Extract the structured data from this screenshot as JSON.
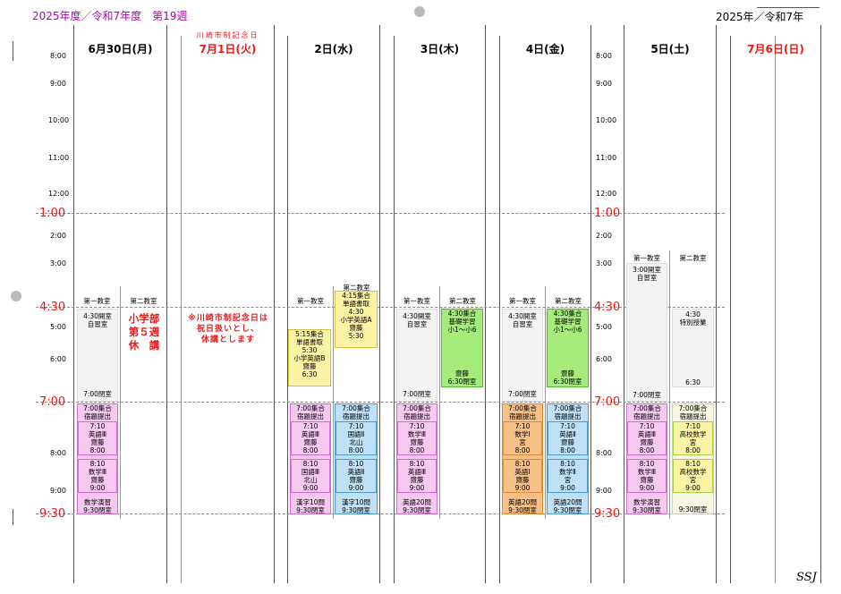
{
  "header": {
    "left": "2025年度／令和7年度　第19週",
    "right": "2025年／令和7年",
    "holiday_note": "川崎市制記念日",
    "signature": "SSJ"
  },
  "days": [
    {
      "label": "6月30日(月)",
      "red": false
    },
    {
      "label": "7月1日(火)",
      "red": true
    },
    {
      "label": "2日(水)",
      "red": false
    },
    {
      "label": "3日(木)",
      "red": false
    },
    {
      "label": "4日(金)",
      "red": false
    },
    {
      "label": "5日(土)",
      "red": false
    },
    {
      "label": "7月6日(日)",
      "red": true
    }
  ],
  "hours_small": [
    "8:00",
    "9:00",
    "10:00",
    "11:00",
    "12:00",
    "2:00",
    "3:00",
    "5:00",
    "6:00",
    "8:00",
    "9:00"
  ],
  "hours_big": [
    "1:00",
    "4:30",
    "7:00",
    "9:30"
  ],
  "rooms": {
    "r1": "第一教室",
    "r2": "第二教室"
  },
  "mon": {
    "open": "4:30開室",
    "self": "自習室",
    "close": "7:00閉室",
    "notice": "小学部\n第５週\n休　講",
    "e1": "7:00集合\n宿題提出",
    "e2": "7:10\n英語Ⅲ\n齋藤\n8:00",
    "e3": "8:10\n数学Ⅲ\n齋藤\n9:00",
    "e4": "数学演習\n9:30閉室"
  },
  "tue": {
    "notice": "※川崎市制記念日は\n祝日扱いとし、\n休講とします"
  },
  "wed": {
    "a": "4:15集合\n単語書取\n4:30\n小学英語A\n齋藤\n5:30",
    "b": "5:15集合\n単語書取\n5:30\n小学英語B\n齋藤\n6:30",
    "e1": "7:00集合\n宿題提出",
    "e2": "7:10\n英語Ⅲ\n齋藤\n8:00",
    "e3": "8:10\n国語Ⅲ\n北山\n9:00",
    "e4": "漢字10問\n9:30閉室",
    "f1": "7:00集合\n宿題提出",
    "f2": "7:10\n国語Ⅱ\n北山\n8:00",
    "f3": "8:10\n英語Ⅱ\n齋藤\n9:00",
    "f4": "漢字10問\n9:30閉室"
  },
  "thu": {
    "open": "4:30開室",
    "self": "自習室",
    "close": "7:00閉室",
    "kiso": "4:30集合\n基礎学習\n小1～小6",
    "kiso_end": "齋藤\n6:30閉室",
    "e1": "7:00集合\n宿題提出",
    "e2": "7:10\n数学Ⅲ\n齋藤\n8:00",
    "e3": "8:10\n英語Ⅲ\n齋藤\n9:00",
    "e4": "英語20問\n9:30閉室"
  },
  "fri": {
    "open": "4:30開室",
    "self": "自習室",
    "close": "7:00閉室",
    "kiso": "4:30集合\n基礎学習\n小1～小6",
    "kiso_end": "齋藤\n6:30閉室",
    "e1": "7:00集合\n宿題提出",
    "e2": "7:10\n数学Ⅰ\n宮\n8:00",
    "e3": "8:10\n英語Ⅰ\n齋藤\n9:00",
    "e4": "英語20問\n9:30閉室",
    "f1": "7:00集合\n宿題提出",
    "f2": "7:10\n英語Ⅱ\n齋藤\n8:00",
    "f3": "8:10\n数学Ⅱ\n宮\n9:00",
    "f4": "英語20問\n9:30閉室"
  },
  "sat": {
    "open": "3:00開室",
    "self": "自習室",
    "close": "7:00閉室",
    "tok": "4:30\n特別授業",
    "tok_end": "6:30",
    "e1": "7:00集合\n宿題提出",
    "e2": "7:10\n英語Ⅲ\n齋藤\n8:00",
    "e3": "8:10\n数学Ⅲ\n齋藤\n9:00",
    "e4": "数学演習\n9:30閉室",
    "f1": "7:00集合\n宿題提出",
    "f2": "7:10\n高校数学\n宮\n8:00",
    "f3": "8:10\n高校数学\n宮\n9:00",
    "f4": "9:30閉室"
  },
  "colors": {
    "red": "#e41c1c",
    "pink": "#f7c8f0",
    "pink_border": "#d56ad0",
    "blue": "#bfe0f7",
    "blue_border": "#4a9ad8",
    "yellow": "#fbf3a6",
    "yellow_border": "#d8c040",
    "green": "#a6ec7c",
    "green_border": "#4cb82c",
    "orange": "#f7c089",
    "orange_border": "#e08a30",
    "grey": "#f3f3f3"
  }
}
